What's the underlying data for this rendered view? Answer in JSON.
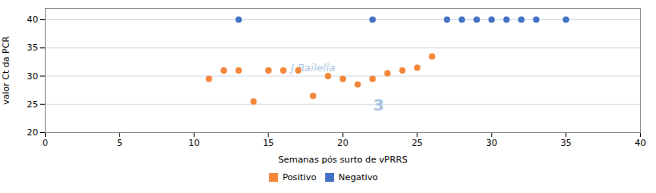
{
  "chart_data": {
    "type": "scatter",
    "xlabel": "Semanas pós surto de vPRRS",
    "ylabel": "valor Ct da PCR",
    "series": [
      {
        "name": "Positivo",
        "color": "#F4873A",
        "x": [
          11,
          12,
          13,
          14,
          15,
          16,
          17,
          18,
          19,
          20,
          21,
          22,
          23,
          24,
          25,
          26
        ],
        "values": [
          29.5,
          31,
          31,
          25.5,
          31,
          31,
          31,
          26.5,
          30,
          29.5,
          28.5,
          29.5,
          30.5,
          31,
          31.5,
          33.5
        ]
      },
      {
        "name": "Negativo",
        "color": "#4472C4",
        "x": [
          13,
          22,
          27,
          28,
          29,
          30,
          31,
          32,
          33,
          35
        ],
        "values": [
          40,
          40,
          40,
          40,
          40,
          40,
          40,
          40,
          40,
          40
        ]
      }
    ],
    "xlim": [
      0,
      40
    ],
    "ylim": [
      20,
      42
    ],
    "xticks": [
      0,
      5,
      10,
      15,
      20,
      25,
      30,
      35,
      40
    ],
    "yticks": [
      20,
      25,
      30,
      35,
      40
    ],
    "grid": true,
    "legend": "bottom",
    "marker": "circle",
    "annotations": [
      "J Bailella",
      "3"
    ]
  }
}
